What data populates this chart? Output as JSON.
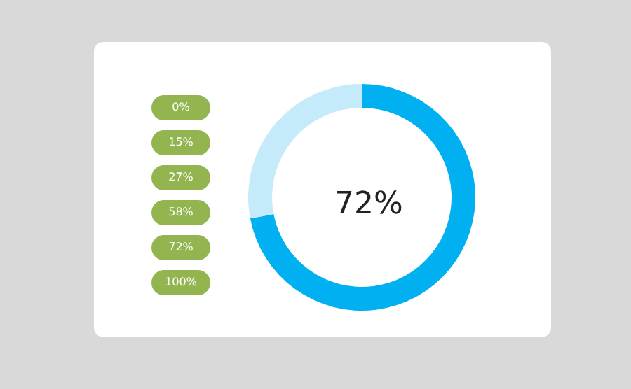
{
  "chart_data": {
    "type": "donut",
    "title": "72%",
    "categories": [
      null,
      null
    ],
    "values": [
      72,
      28
    ],
    "colors": [
      "#00b0f0",
      "#c5eaf9"
    ],
    "annotations": [
      "0%",
      "15%",
      "27%",
      "58%",
      "72%",
      "100%"
    ]
  }
}
